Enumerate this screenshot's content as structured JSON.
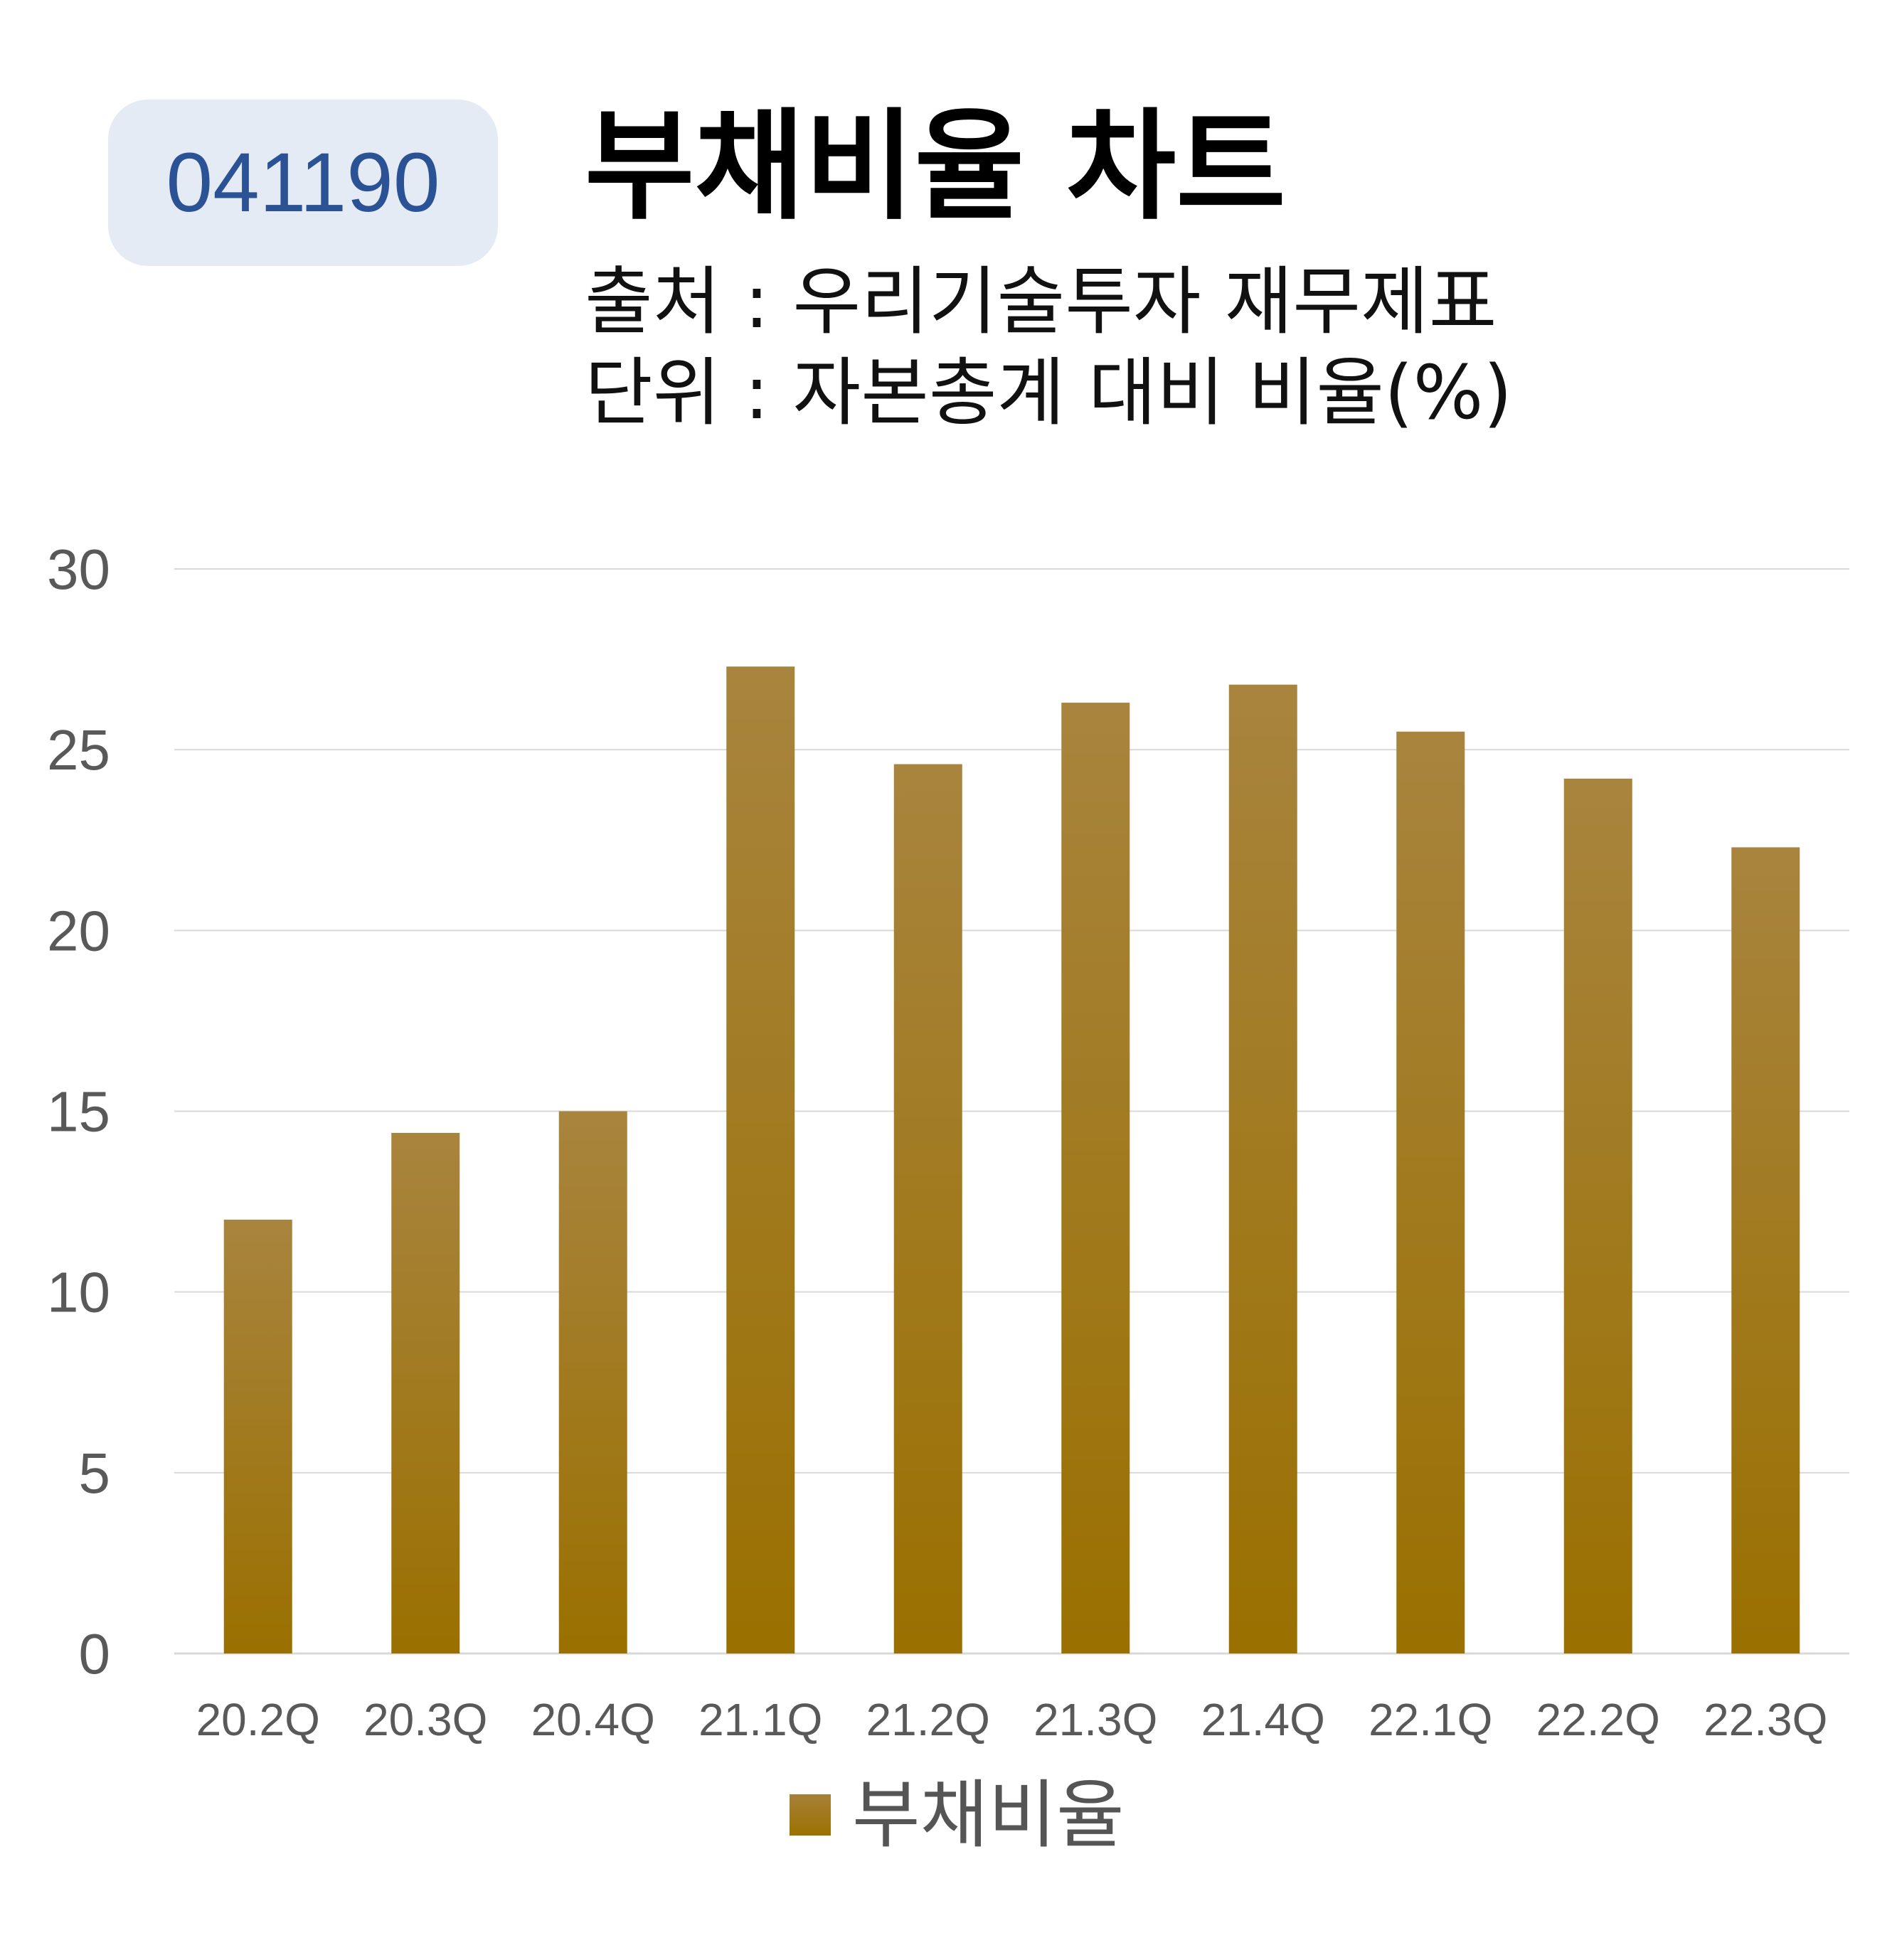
{
  "ticker": "041190",
  "title": "부채비율 차트",
  "subtitle_source": "출처 : 우리기술투자 재무제표",
  "subtitle_unit": "단위 : 자본총계 대비 비율(%)",
  "colors": {
    "bar_top": "#a8843e",
    "bar_bottom": "#9a7000",
    "badge_bg": "#e4ebf5",
    "badge_text": "#2b5294",
    "gridline": "#d9d9d9",
    "axis_text": "#595959"
  },
  "chart_data": {
    "type": "bar",
    "categories": [
      "20.2Q",
      "20.3Q",
      "20.4Q",
      "21.1Q",
      "21.2Q",
      "21.3Q",
      "21.4Q",
      "22.1Q",
      "22.2Q",
      "22.3Q"
    ],
    "series": [
      {
        "name": "부채비율",
        "values": [
          12.0,
          14.4,
          15.0,
          27.3,
          24.6,
          26.3,
          26.8,
          25.5,
          24.2,
          22.3
        ]
      }
    ],
    "yticks": [
      0,
      5,
      10,
      15,
      20,
      25,
      30
    ],
    "ylim": [
      0,
      30
    ],
    "grid": true,
    "legend_position": "bottom-center"
  }
}
